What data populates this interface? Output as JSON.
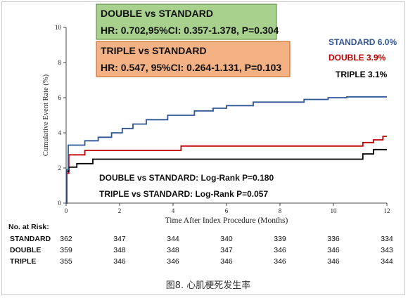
{
  "chart_data": {
    "type": "line",
    "xlabel": "Time After Index Procedure (Months)",
    "ylabel": "Cumulative Event Rate (%)",
    "xlim": [
      0,
      12
    ],
    "ylim": [
      0,
      10
    ],
    "xticks": [
      "0",
      "2",
      "4",
      "6",
      "8",
      "10",
      "12"
    ],
    "yticks": [
      "0",
      "2",
      "4",
      "6",
      "8",
      "10"
    ],
    "series": [
      {
        "name": "STANDARD",
        "end_label": "STANDARD 6.0%",
        "color": "#2f5597",
        "x": [
          0,
          0.03,
          0.08,
          0.7,
          1.2,
          1.7,
          2.1,
          2.5,
          3.0,
          3.8,
          4.8,
          5.5,
          6.0,
          7.0,
          8.9,
          9.8,
          10.5,
          12
        ],
        "y": [
          0,
          1.9,
          3.3,
          3.55,
          3.75,
          4.0,
          4.25,
          4.5,
          4.75,
          5.0,
          5.25,
          5.4,
          5.55,
          5.75,
          5.9,
          6.0,
          6.05,
          6.05
        ]
      },
      {
        "name": "DOUBLE",
        "end_label": "DOUBLE 3.9%",
        "color": "#c00000",
        "x": [
          0,
          0.03,
          0.1,
          0.7,
          4.3,
          11.1,
          11.5,
          11.85,
          12
        ],
        "y": [
          0,
          1.7,
          2.75,
          3.0,
          3.25,
          3.45,
          3.6,
          3.8,
          3.8
        ]
      },
      {
        "name": "TRIPLE",
        "end_label": "TRIPLE 3.1%",
        "color": "#000000",
        "x": [
          0,
          0.03,
          0.1,
          0.4,
          1.0,
          11.1,
          11.5,
          12
        ],
        "y": [
          0,
          1.8,
          2.05,
          2.25,
          2.5,
          2.8,
          3.05,
          3.05
        ]
      }
    ],
    "annotations": {
      "box_double": {
        "line1": "DOUBLE vs STANDARD",
        "line2": "HR: 0.702,95%CI: 0.357-1.378, P=0.304",
        "fill": "#a9d18e",
        "stroke": "#548235"
      },
      "box_triple": {
        "line1": "TRIPLE vs STANDARD",
        "line2": "HR: 0.547, 95%CI: 0.264-1.131, P=0.103",
        "fill": "#f4b183",
        "stroke": "#c55a11"
      },
      "logrank_double": "DOUBLE vs STANDARD: Log-Rank P=0.180",
      "logrank_triple": "TRIPLE vs STANDARD: Log-Rank P=0.057"
    },
    "risk_table": {
      "title": "No. at Risk:",
      "time_points": [
        0,
        2,
        4,
        6,
        8,
        10,
        12
      ],
      "rows": [
        {
          "label": "STANDARD",
          "values": [
            "362",
            "347",
            "344",
            "340",
            "339",
            "336",
            "334"
          ]
        },
        {
          "label": "DOUBLE",
          "values": [
            "359",
            "348",
            "348",
            "347",
            "346",
            "346",
            "343"
          ]
        },
        {
          "label": "TRIPLE",
          "values": [
            "355",
            "346",
            "346",
            "346",
            "346",
            "346",
            "344"
          ]
        }
      ]
    },
    "caption": "图8. 心肌梗死发生率"
  }
}
